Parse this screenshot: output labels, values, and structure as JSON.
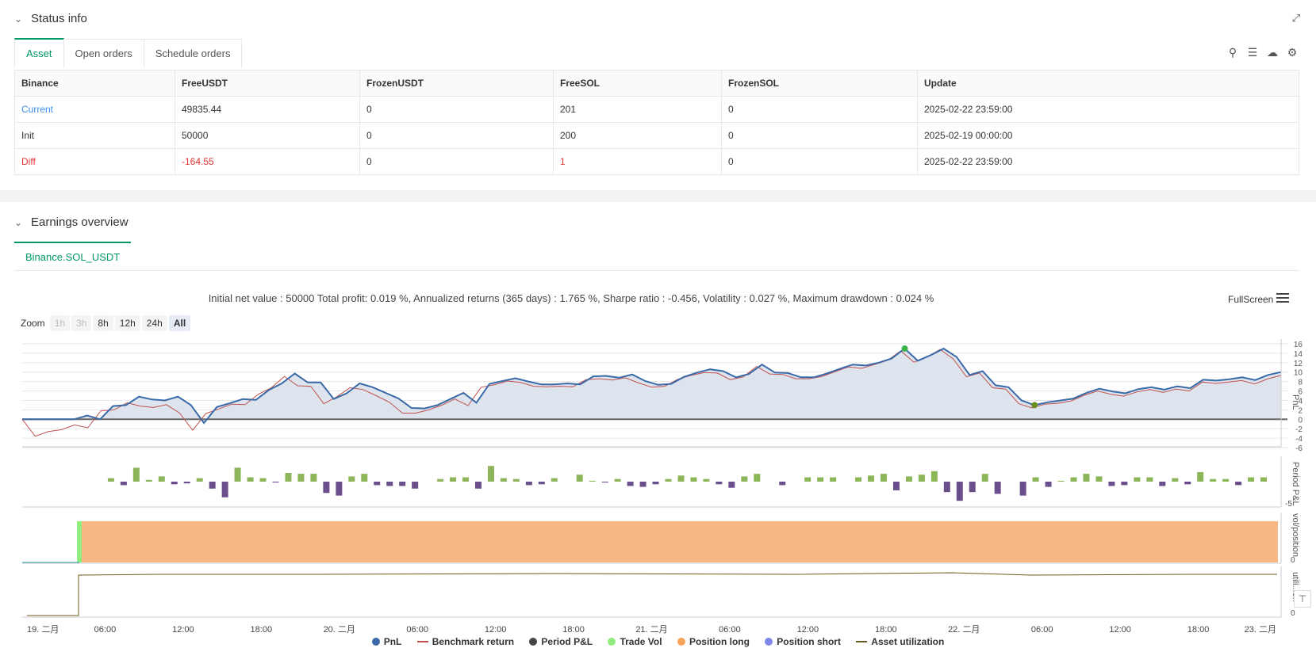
{
  "status_panel": {
    "title": "Status info",
    "tabs": [
      "Asset",
      "Open orders",
      "Schedule orders"
    ],
    "icons": [
      "search-icon",
      "list-icon",
      "download-icon",
      "gear-icon"
    ],
    "table": {
      "headers": [
        "Binance",
        "FreeUSDT",
        "FrozenUSDT",
        "FreeSOL",
        "FrozenSOL",
        "Update"
      ],
      "rows": [
        [
          "Current",
          "49835.44",
          "0",
          "201",
          "0",
          "2025-02-22 23:59:00"
        ],
        [
          "Init",
          "50000",
          "0",
          "200",
          "0",
          "2025-02-19 00:00:00"
        ],
        [
          "Diff",
          "-164.55",
          "0",
          "1",
          "0",
          "2025-02-22 23:59:00"
        ]
      ]
    }
  },
  "earnings_panel": {
    "title": "Earnings overview",
    "tab": "Binance.SOL_USDT",
    "summary": "Initial net value : 50000 Total profit: 0.019 %, Annualized returns (365 days) : 1.765 %, Sharpe ratio : -0.456, Volatility : 0.027 %, Maximum drawdown : 0.024 %",
    "fullscreen": "FullScreen",
    "zoom": {
      "label": "Zoom",
      "options": [
        "1h",
        "3h",
        "8h",
        "12h",
        "24h",
        "All"
      ],
      "selected": "All"
    }
  },
  "chart_data": {
    "type": "line",
    "x_labels": [
      "19. 二月",
      "06:00",
      "12:00",
      "18:00",
      "20. 二月",
      "06:00",
      "12:00",
      "18:00",
      "21. 二月",
      "06:00",
      "12:00",
      "18:00",
      "22. 二月",
      "06:00",
      "12:00",
      "18:00",
      "23. 二月"
    ],
    "panels": [
      {
        "ylabel": "PnL",
        "yticks": [
          "16",
          "14",
          "12",
          "10",
          "8",
          "6",
          "4",
          "2",
          "0",
          "-2",
          "-4",
          "-6"
        ],
        "ylim": [
          -6,
          16
        ]
      },
      {
        "ylabel": "Period P&L",
        "yticks": [
          "-5"
        ]
      },
      {
        "ylabel": "vol/position",
        "yticks": [
          "0"
        ]
      },
      {
        "ylabel": "utili...on",
        "yticks": [
          "0"
        ]
      }
    ],
    "series": [
      {
        "name": "PnL",
        "color": "#3a6aa8",
        "values": [
          0,
          0,
          0,
          0,
          0,
          0.8,
          0,
          2.8,
          3,
          4.8,
          4.2,
          4,
          4.8,
          3,
          -0.8,
          2.6,
          3.4,
          4.3,
          4.1,
          6.2,
          7.6,
          9.7,
          7.8,
          7.8,
          4.3,
          5.5,
          7.6,
          6.8,
          5.6,
          4.4,
          2.4,
          2.3,
          3,
          4.3,
          5.6,
          3.5,
          7.5,
          8.1,
          8.7,
          8,
          7.4,
          7.4,
          7.6,
          7.4,
          9.1,
          9.2,
          8.8,
          9.5,
          8.1,
          7.3,
          7.5,
          9,
          9.9,
          10.6,
          10.2,
          8.9,
          9.6,
          11.6,
          9.9,
          9.8,
          8.9,
          8.9,
          9.7,
          10.7,
          11.6,
          11.4,
          12,
          12.9,
          15,
          12.4,
          13.6,
          15,
          13.2,
          9.4,
          10.2,
          7.2,
          6.8,
          4,
          3,
          3.6,
          4,
          4.4,
          5.6,
          6.5,
          5.9,
          5.5,
          6.4,
          6.8,
          6.3,
          7,
          6.6,
          8.4,
          8.2,
          8.5,
          8.9,
          8.3,
          9.4,
          10
        ]
      },
      {
        "name": "Benchmark return",
        "color": "#c0504d",
        "values": [
          0,
          -3.6,
          -2.6,
          -2.2,
          -1.2,
          -1.8,
          1.8,
          2,
          3.5,
          2.8,
          2.5,
          3.1,
          1.3,
          -2.3,
          1.2,
          2.2,
          3.2,
          3.1,
          5.3,
          6.7,
          9.1,
          7.1,
          7,
          3.3,
          4.8,
          6.7,
          6.3,
          5,
          3.6,
          1.3,
          1.3,
          2,
          3,
          4.3,
          2.9,
          6.8,
          7.3,
          8.1,
          7.8,
          7,
          6.9,
          7,
          6.9,
          8.4,
          8.6,
          8.3,
          8.8,
          7.7,
          6.8,
          7,
          8.5,
          9.3,
          9.9,
          9.8,
          8.4,
          9,
          11.2,
          9.6,
          9.5,
          8.6,
          8.6,
          9.1,
          10.1,
          11.1,
          10.8,
          11.6,
          12.5,
          14.5,
          12.1,
          13.2,
          14.8,
          12.8,
          9,
          9.8,
          6.7,
          6.4,
          3.3,
          2.4,
          3.2,
          3.4,
          3.9,
          5.1,
          6,
          5.3,
          4.9,
          5.8,
          6.3,
          5.7,
          6.4,
          6,
          7.9,
          7.6,
          7.9,
          8.2,
          7.5,
          8.6,
          9.3
        ]
      },
      {
        "name": "Period P&L",
        "color": "#444444",
        "values": []
      },
      {
        "name": "Trade Vol",
        "color": "#90ed7d",
        "values": []
      },
      {
        "name": "Position long",
        "color": "#f7a35c",
        "values": []
      },
      {
        "name": "Position short",
        "color": "#8085e9",
        "values": []
      },
      {
        "name": "Asset utilization",
        "color": "#6b5a1e",
        "values": []
      }
    ],
    "period_pnl": [
      0,
      0,
      0,
      0.4,
      -0.4,
      1.6,
      0.2,
      0.6,
      -0.3,
      -0.2,
      0.4,
      -0.8,
      -1.8,
      1.6,
      0.5,
      0.4,
      -0.1,
      1,
      0.9,
      0.9,
      -1.3,
      -1.6,
      0.6,
      0.9,
      -0.4,
      -0.5,
      -0.5,
      -0.8,
      0,
      0.3,
      0.5,
      0.5,
      -0.8,
      1.8,
      0.4,
      0.3,
      -0.4,
      -0.3,
      0.4,
      0,
      0.8,
      0.1,
      -0.1,
      0.3,
      -0.5,
      -0.6,
      -0.3,
      0.3,
      0.7,
      0.5,
      0.3,
      -0.3,
      -0.7,
      0.6,
      0.9,
      0,
      -0.4,
      0,
      0.5,
      0.5,
      0.5,
      0,
      0.5,
      0.7,
      0.9,
      -1,
      0.6,
      0.8,
      1.2,
      -1.2,
      -2.2,
      -1.2,
      0.9,
      -1.4,
      0,
      -1.6,
      0.5,
      -0.6,
      0.1,
      0.5,
      0.9,
      0.6,
      -0.5,
      -0.4,
      0.5,
      0.5,
      -0.5,
      0.4,
      -0.3,
      1.1,
      0.3,
      0.3,
      -0.4,
      0.5,
      0.5
    ],
    "legend": [
      "PnL",
      "Benchmark return",
      "Period P&L",
      "Trade Vol",
      "Position long",
      "Position short",
      "Asset utilization"
    ]
  }
}
